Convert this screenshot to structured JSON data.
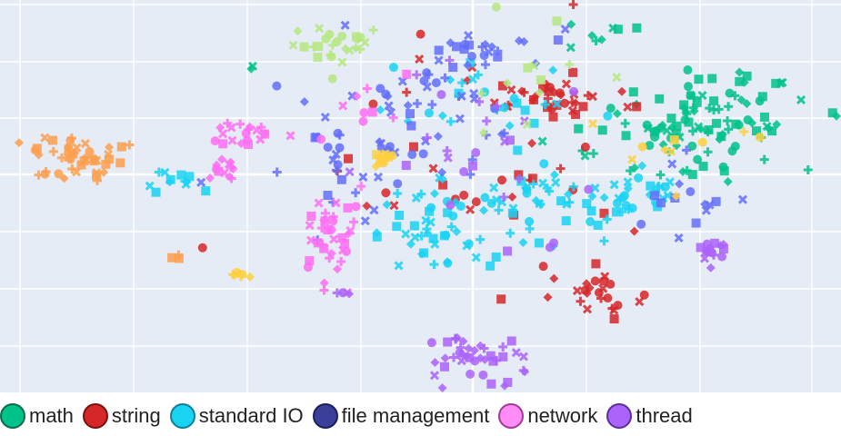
{
  "chart_data": {
    "type": "scatter",
    "title": "",
    "xlabel": "",
    "ylabel": "",
    "xlim": [
      0,
      100
    ],
    "ylim": [
      0,
      100
    ],
    "grid": true,
    "legend_position": "bottom",
    "background": "#e5ecf6",
    "series": [
      {
        "name": "math",
        "color": "#00c28a",
        "border": "#0a6b4c",
        "clusters": [
          {
            "cx": 84,
            "cy": 70,
            "sx": 6,
            "sy": 6,
            "n": 90
          },
          {
            "cx": 71,
            "cy": 90,
            "sx": 2,
            "sy": 1.5,
            "n": 8
          },
          {
            "cx": 78,
            "cy": 62,
            "sx": 8,
            "sy": 6,
            "n": 18
          },
          {
            "cx": 30,
            "cy": 83,
            "sx": 0.5,
            "sy": 0.5,
            "n": 2
          }
        ]
      },
      {
        "name": "string",
        "color": "#d62728",
        "border": "#7a1010",
        "clusters": [
          {
            "cx": 66,
            "cy": 76,
            "sx": 3,
            "sy": 3,
            "n": 30
          },
          {
            "cx": 71,
            "cy": 26,
            "sx": 2.5,
            "sy": 3,
            "n": 25
          },
          {
            "cx": 58,
            "cy": 60,
            "sx": 10,
            "sy": 15,
            "n": 40
          }
        ]
      },
      {
        "name": "standard IO",
        "color": "#19d3f3",
        "border": "#0f7f94",
        "clusters": [
          {
            "cx": 61,
            "cy": 48,
            "sx": 7,
            "sy": 6,
            "n": 60
          },
          {
            "cx": 51,
            "cy": 40,
            "sx": 4,
            "sy": 5,
            "n": 35
          },
          {
            "cx": 75,
            "cy": 50,
            "sx": 3,
            "sy": 4,
            "n": 20
          },
          {
            "cx": 20,
            "cy": 54,
            "sx": 2.5,
            "sy": 1,
            "n": 12
          },
          {
            "cx": 58,
            "cy": 75,
            "sx": 6,
            "sy": 6,
            "n": 25
          }
        ]
      },
      {
        "name": "file management",
        "color": "#636efa",
        "border": "#2c318a",
        "clusters": [
          {
            "cx": 50,
            "cy": 70,
            "sx": 6,
            "sy": 8,
            "n": 45
          },
          {
            "cx": 40,
            "cy": 62,
            "sx": 4,
            "sy": 10,
            "n": 25
          },
          {
            "cx": 57,
            "cy": 88,
            "sx": 4,
            "sy": 4,
            "n": 20
          },
          {
            "cx": 80,
            "cy": 50,
            "sx": 4,
            "sy": 6,
            "n": 15
          }
        ]
      },
      {
        "name": "network",
        "color": "#ff6df2",
        "border": "#a03a96",
        "clusters": [
          {
            "cx": 39,
            "cy": 38,
            "sx": 2,
            "sy": 6,
            "n": 35
          },
          {
            "cx": 29,
            "cy": 66,
            "sx": 2,
            "sy": 2,
            "n": 20
          },
          {
            "cx": 27,
            "cy": 57,
            "sx": 1.5,
            "sy": 2,
            "n": 12
          },
          {
            "cx": 43,
            "cy": 70,
            "sx": 3,
            "sy": 6,
            "n": 10
          }
        ]
      },
      {
        "name": "thread",
        "color": "#ab63fa",
        "border": "#5a2f9a",
        "clusters": [
          {
            "cx": 56,
            "cy": 10,
            "sx": 3,
            "sy": 3,
            "n": 40
          },
          {
            "cx": 85,
            "cy": 36,
            "sx": 1.5,
            "sy": 1.5,
            "n": 14
          },
          {
            "cx": 56,
            "cy": 60,
            "sx": 8,
            "sy": 12,
            "n": 25
          },
          {
            "cx": 41,
            "cy": 25,
            "sx": 0.5,
            "sy": 0.5,
            "n": 3
          }
        ]
      },
      {
        "name": "",
        "color": "#fe9f4d",
        "border": "#a85a14",
        "clusters": [
          {
            "cx": 9,
            "cy": 60,
            "sx": 3,
            "sy": 3,
            "n": 45
          },
          {
            "cx": 21,
            "cy": 34,
            "sx": 0.5,
            "sy": 1,
            "n": 3
          }
        ]
      },
      {
        "name": "",
        "color": "#b6e880",
        "border": "#6a9a30",
        "clusters": [
          {
            "cx": 40,
            "cy": 88,
            "sx": 3,
            "sy": 2.5,
            "n": 25
          },
          {
            "cx": 62,
            "cy": 80,
            "sx": 5,
            "sy": 8,
            "n": 12
          }
        ]
      },
      {
        "name": "",
        "color": "#ffd03f",
        "border": "#a88410",
        "clusters": [
          {
            "cx": 46,
            "cy": 60,
            "sx": 1.2,
            "sy": 1,
            "n": 12
          },
          {
            "cx": 29,
            "cy": 30,
            "sx": 0.8,
            "sy": 0.5,
            "n": 6
          },
          {
            "cx": 78,
            "cy": 62,
            "sx": 6,
            "sy": 6,
            "n": 10
          }
        ]
      }
    ]
  },
  "legend": {
    "items": [
      {
        "label": "math",
        "color": "#00c28a",
        "border": "#0a6b4c"
      },
      {
        "label": "string",
        "color": "#d62728",
        "border": "#7a1010"
      },
      {
        "label": "standard IO",
        "color": "#19d3f3",
        "border": "#0f7f94"
      },
      {
        "label": "file management",
        "color": "#3b3f99",
        "border": "#1c1f5a"
      },
      {
        "label": "network",
        "color": "#ff8df5",
        "border": "#a03a96"
      },
      {
        "label": "thread",
        "color": "#ab63fa",
        "border": "#5a2f9a"
      }
    ]
  }
}
